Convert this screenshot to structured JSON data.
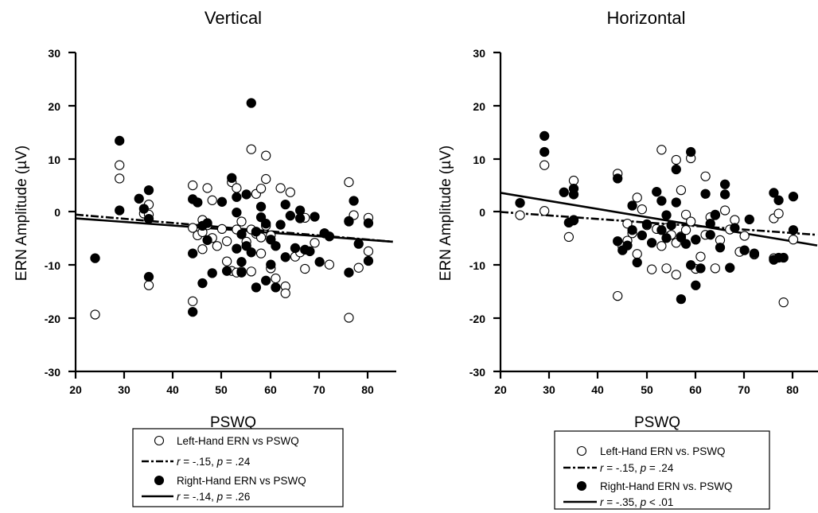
{
  "chart_data": [
    {
      "type": "scatter",
      "title": "Vertical",
      "xlabel": "PSWQ",
      "ylabel": "ERN Amplitude (µV)",
      "xlim": [
        20,
        85
      ],
      "ylim": [
        -30,
        30
      ],
      "xticks": [
        "20",
        "30",
        "40",
        "50",
        "60",
        "70",
        "80"
      ],
      "yticks": [
        "30",
        "20",
        "10",
        "0",
        "-10",
        "-20",
        "-30"
      ],
      "legend": {
        "placement": "below plot",
        "entries": [
          {
            "marker": "open-circle",
            "label": "Left-Hand ERN vs PSWQ"
          },
          {
            "line": "dashed",
            "r_text": "r",
            "stat_text": " = -.15, ",
            "p_text": "p",
            "p_value_text": " = .24"
          },
          {
            "marker": "filled-circle",
            "label": "Right-Hand ERN vs PSWQ"
          },
          {
            "line": "solid",
            "r_text": "r",
            "stat_text": " = -.14, ",
            "p_text": "p",
            "p_value_text": " = .26"
          }
        ]
      },
      "series": [
        {
          "name": "Left-Hand ERN vs PSWQ",
          "marker": "open",
          "points": [
            [
              24,
              -19.3
            ],
            [
              29,
              8.8
            ],
            [
              29,
              6.3
            ],
            [
              34,
              -0.3
            ],
            [
              35,
              1.4
            ],
            [
              35,
              -0.5
            ],
            [
              35,
              -13.8
            ],
            [
              44,
              5.0
            ],
            [
              44,
              -3.0
            ],
            [
              44,
              -16.8
            ],
            [
              45,
              -4.4
            ],
            [
              46,
              -1.5
            ],
            [
              46,
              -3.8
            ],
            [
              46,
              -7.0
            ],
            [
              47,
              4.5
            ],
            [
              47,
              -2.5
            ],
            [
              48,
              2.2
            ],
            [
              48,
              -4.9
            ],
            [
              49,
              -6.4
            ],
            [
              50,
              -3.2
            ],
            [
              51,
              -5.5
            ],
            [
              51,
              -9.3
            ],
            [
              52,
              5.6
            ],
            [
              52,
              -11.1
            ],
            [
              53,
              4.5
            ],
            [
              53,
              -3.3
            ],
            [
              53,
              -11.4
            ],
            [
              54,
              -1.8
            ],
            [
              54,
              -11.2
            ],
            [
              55,
              -5.6
            ],
            [
              56,
              11.8
            ],
            [
              56,
              -3.3
            ],
            [
              56,
              -11.2
            ],
            [
              57,
              3.4
            ],
            [
              57,
              -4.1
            ],
            [
              58,
              4.4
            ],
            [
              58,
              -4.8
            ],
            [
              58,
              -7.8
            ],
            [
              59,
              6.2
            ],
            [
              59,
              10.6
            ],
            [
              59,
              -2.6
            ],
            [
              60,
              -10.6
            ],
            [
              60,
              -4.4
            ],
            [
              61,
              -12.5
            ],
            [
              62,
              4.5
            ],
            [
              63,
              -14.0
            ],
            [
              63,
              -15.3
            ],
            [
              64,
              3.7
            ],
            [
              65,
              -8.4
            ],
            [
              66,
              -7.6
            ],
            [
              67,
              -1.1
            ],
            [
              67,
              -10.7
            ],
            [
              69,
              -5.8
            ],
            [
              71,
              -4.0
            ],
            [
              72,
              -9.9
            ],
            [
              76,
              5.6
            ],
            [
              76,
              -1.8
            ],
            [
              76,
              -19.9
            ],
            [
              77,
              -0.6
            ],
            [
              78,
              -10.5
            ],
            [
              80,
              -1.1
            ],
            [
              80,
              -7.4
            ]
          ]
        },
        {
          "name": "Right-Hand ERN vs PSWQ",
          "marker": "filled",
          "points": [
            [
              24,
              -8.7
            ],
            [
              29,
              13.4
            ],
            [
              29,
              0.3
            ],
            [
              33,
              2.5
            ],
            [
              34,
              0.6
            ],
            [
              35,
              4.1
            ],
            [
              35,
              -1.3
            ],
            [
              35,
              -12.2
            ],
            [
              44,
              2.4
            ],
            [
              44,
              -7.8
            ],
            [
              44,
              -18.8
            ],
            [
              45,
              1.8
            ],
            [
              46,
              -2.6
            ],
            [
              46,
              -13.4
            ],
            [
              47,
              -2.1
            ],
            [
              47,
              -5.3
            ],
            [
              48,
              -11.5
            ],
            [
              50,
              1.9
            ],
            [
              51,
              -11.1
            ],
            [
              52,
              6.4
            ],
            [
              53,
              2.8
            ],
            [
              53,
              -0.1
            ],
            [
              53,
              -6.9
            ],
            [
              54,
              -4.2
            ],
            [
              54,
              -9.4
            ],
            [
              54,
              -11.4
            ],
            [
              55,
              3.3
            ],
            [
              55,
              -6.4
            ],
            [
              56,
              20.5
            ],
            [
              56,
              -7.6
            ],
            [
              57,
              -3.7
            ],
            [
              57,
              -14.2
            ],
            [
              58,
              -1.0
            ],
            [
              58,
              1.0
            ],
            [
              59,
              -2.2
            ],
            [
              59,
              -12.9
            ],
            [
              60,
              -5.2
            ],
            [
              60,
              -9.9
            ],
            [
              61,
              -6.4
            ],
            [
              61,
              -14.2
            ],
            [
              62,
              -2.4
            ],
            [
              63,
              1.4
            ],
            [
              63,
              -8.5
            ],
            [
              64,
              -0.7
            ],
            [
              65,
              -6.8
            ],
            [
              66,
              -1.2
            ],
            [
              66,
              0.3
            ],
            [
              67,
              -7.1
            ],
            [
              68,
              -7.4
            ],
            [
              69,
              -0.9
            ],
            [
              70,
              -9.4
            ],
            [
              71,
              -4.0
            ],
            [
              72,
              -4.6
            ],
            [
              76,
              -11.4
            ],
            [
              76,
              -1.7
            ],
            [
              77,
              2.1
            ],
            [
              78,
              -6.0
            ],
            [
              80,
              -2.1
            ],
            [
              80,
              -9.2
            ]
          ]
        }
      ],
      "fit_lines": [
        {
          "name": "Left-Hand fit",
          "style": "dashed",
          "x": [
            20,
            85
          ],
          "y": [
            -0.5,
            -5.6
          ]
        },
        {
          "name": "Right-Hand fit",
          "style": "solid",
          "x": [
            20,
            85
          ],
          "y": [
            -1.2,
            -5.6
          ]
        }
      ]
    },
    {
      "type": "scatter",
      "title": "Horizontal",
      "xlabel": "PSWQ",
      "ylabel": "ERN Amplitude (µV)",
      "xlim": [
        20,
        85
      ],
      "ylim": [
        -30,
        30
      ],
      "xticks": [
        "20",
        "30",
        "40",
        "50",
        "60",
        "70",
        "80"
      ],
      "yticks": [
        "30",
        "20",
        "10",
        "0",
        "-10",
        "-20",
        "-30"
      ],
      "legend": {
        "placement": "below plot",
        "entries": [
          {
            "marker": "open-circle",
            "label": "Left-Hand ERN vs. PSWQ"
          },
          {
            "line": "dashed",
            "r_text": "r",
            "stat_text": " = -.15, ",
            "p_text": "p",
            "p_value_text": " = .24"
          },
          {
            "marker": "filled-circle",
            "label": "Right-Hand ERN vs. PSWQ"
          },
          {
            "line": "solid",
            "r_text": "r",
            "stat_text": " = -.35, ",
            "p_text": "p",
            "p_value_text": " < .01"
          }
        ]
      },
      "series": [
        {
          "name": "Left-Hand ERN vs. PSWQ",
          "marker": "open",
          "points": [
            [
              24,
              -0.6
            ],
            [
              29,
              8.8
            ],
            [
              29,
              0.2
            ],
            [
              34,
              -4.7
            ],
            [
              35,
              5.9
            ],
            [
              35,
              -1.6
            ],
            [
              44,
              7.2
            ],
            [
              44,
              -15.8
            ],
            [
              45,
              -6.5
            ],
            [
              46,
              -2.2
            ],
            [
              46,
              -5.4
            ],
            [
              47,
              -4.0
            ],
            [
              48,
              -7.9
            ],
            [
              48,
              2.7
            ],
            [
              49,
              0.5
            ],
            [
              50,
              -2.5
            ],
            [
              51,
              -10.8
            ],
            [
              52,
              -3.2
            ],
            [
              53,
              11.7
            ],
            [
              53,
              -6.4
            ],
            [
              54,
              -3.0
            ],
            [
              54,
              -10.6
            ],
            [
              55,
              -4.3
            ],
            [
              56,
              9.8
            ],
            [
              56,
              -5.8
            ],
            [
              56,
              -11.8
            ],
            [
              57,
              4.1
            ],
            [
              57,
              -4.6
            ],
            [
              58,
              -0.5
            ],
            [
              58,
              -3.4
            ],
            [
              59,
              10.1
            ],
            [
              59,
              -1.8
            ],
            [
              60,
              -5.2
            ],
            [
              60,
              -10.7
            ],
            [
              61,
              -8.4
            ],
            [
              62,
              6.7
            ],
            [
              62,
              -4.3
            ],
            [
              63,
              -1.0
            ],
            [
              64,
              -10.6
            ],
            [
              64,
              -0.6
            ],
            [
              65,
              -5.3
            ],
            [
              66,
              0.3
            ],
            [
              67,
              -3.3
            ],
            [
              68,
              -1.5
            ],
            [
              69,
              -7.5
            ],
            [
              70,
              -4.5
            ],
            [
              72,
              -8.0
            ],
            [
              76,
              -1.2
            ],
            [
              76,
              -8.7
            ],
            [
              77,
              -0.3
            ],
            [
              78,
              -17.0
            ],
            [
              80,
              -5.2
            ]
          ]
        },
        {
          "name": "Right-Hand ERN vs. PSWQ",
          "marker": "filled",
          "points": [
            [
              24,
              1.7
            ],
            [
              29,
              14.3
            ],
            [
              29,
              11.3
            ],
            [
              33,
              3.7
            ],
            [
              34,
              -2.0
            ],
            [
              35,
              4.4
            ],
            [
              35,
              3.3
            ],
            [
              35,
              -1.5
            ],
            [
              44,
              6.3
            ],
            [
              44,
              -5.5
            ],
            [
              45,
              -7.2
            ],
            [
              46,
              -6.3
            ],
            [
              47,
              1.2
            ],
            [
              47,
              -3.4
            ],
            [
              48,
              -9.5
            ],
            [
              49,
              -4.4
            ],
            [
              50,
              -2.3
            ],
            [
              51,
              -5.8
            ],
            [
              52,
              3.8
            ],
            [
              53,
              2.1
            ],
            [
              53,
              -3.4
            ],
            [
              54,
              -4.9
            ],
            [
              54,
              -0.6
            ],
            [
              55,
              -2.5
            ],
            [
              56,
              8.0
            ],
            [
              56,
              1.8
            ],
            [
              57,
              -16.4
            ],
            [
              57,
              -4.8
            ],
            [
              58,
              -6.0
            ],
            [
              59,
              11.3
            ],
            [
              59,
              -10.0
            ],
            [
              60,
              -13.8
            ],
            [
              60,
              -5.2
            ],
            [
              61,
              -10.6
            ],
            [
              62,
              3.4
            ],
            [
              63,
              -2.2
            ],
            [
              63,
              -4.3
            ],
            [
              64,
              -0.5
            ],
            [
              65,
              -6.7
            ],
            [
              66,
              5.2
            ],
            [
              66,
              3.3
            ],
            [
              67,
              -10.5
            ],
            [
              68,
              -3.0
            ],
            [
              70,
              -7.2
            ],
            [
              71,
              -1.4
            ],
            [
              72,
              -7.8
            ],
            [
              76,
              3.6
            ],
            [
              76,
              -9.0
            ],
            [
              77,
              -8.6
            ],
            [
              77,
              2.2
            ],
            [
              78,
              -8.6
            ],
            [
              80,
              2.9
            ],
            [
              80,
              -3.4
            ]
          ]
        }
      ],
      "fit_lines": [
        {
          "name": "Left-Hand fit",
          "style": "dashed",
          "x": [
            20,
            85
          ],
          "y": [
            0.0,
            -4.3
          ]
        },
        {
          "name": "Right-Hand fit",
          "style": "solid",
          "x": [
            20,
            85
          ],
          "y": [
            3.6,
            -6.3
          ]
        }
      ]
    }
  ]
}
